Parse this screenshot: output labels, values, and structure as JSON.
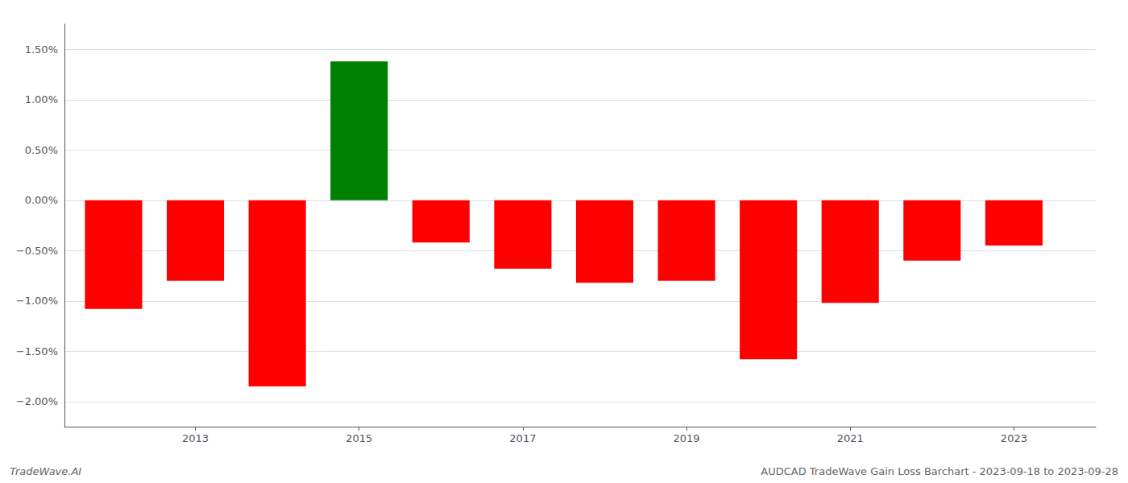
{
  "chart_data": {
    "type": "bar",
    "x": [
      2012,
      2013,
      2014,
      2015,
      2016,
      2017,
      2018,
      2019,
      2020,
      2021,
      2022,
      2023
    ],
    "values": [
      -1.08,
      -0.8,
      -1.85,
      1.38,
      -0.42,
      -0.68,
      -0.82,
      -0.8,
      -1.58,
      -1.02,
      -0.6,
      -0.45
    ],
    "colors": [
      "#ff0000",
      "#ff0000",
      "#ff0000",
      "#008000",
      "#ff0000",
      "#ff0000",
      "#ff0000",
      "#ff0000",
      "#ff0000",
      "#ff0000",
      "#ff0000",
      "#ff0000"
    ],
    "xlim": [
      2011.4,
      2024.0
    ],
    "xticks": [
      2013,
      2015,
      2017,
      2019,
      2021,
      2023
    ],
    "ylim": [
      -2.25,
      1.75
    ],
    "yticks": [
      {
        "value": -2.0,
        "label": "−2.00%"
      },
      {
        "value": -1.5,
        "label": "−1.50%"
      },
      {
        "value": -1.0,
        "label": "−1.00%"
      },
      {
        "value": -0.5,
        "label": "−0.50%"
      },
      {
        "value": 0.0,
        "label": "0.00%"
      },
      {
        "value": 0.5,
        "label": "0.50%"
      },
      {
        "value": 1.0,
        "label": "1.00%"
      },
      {
        "value": 1.5,
        "label": "1.50%"
      }
    ],
    "grid": true,
    "annotations": [
      "TradeWave.AI",
      "AUDCAD TradeWave Gain Loss Barchart - 2023-09-18 to 2023-09-28"
    ]
  }
}
